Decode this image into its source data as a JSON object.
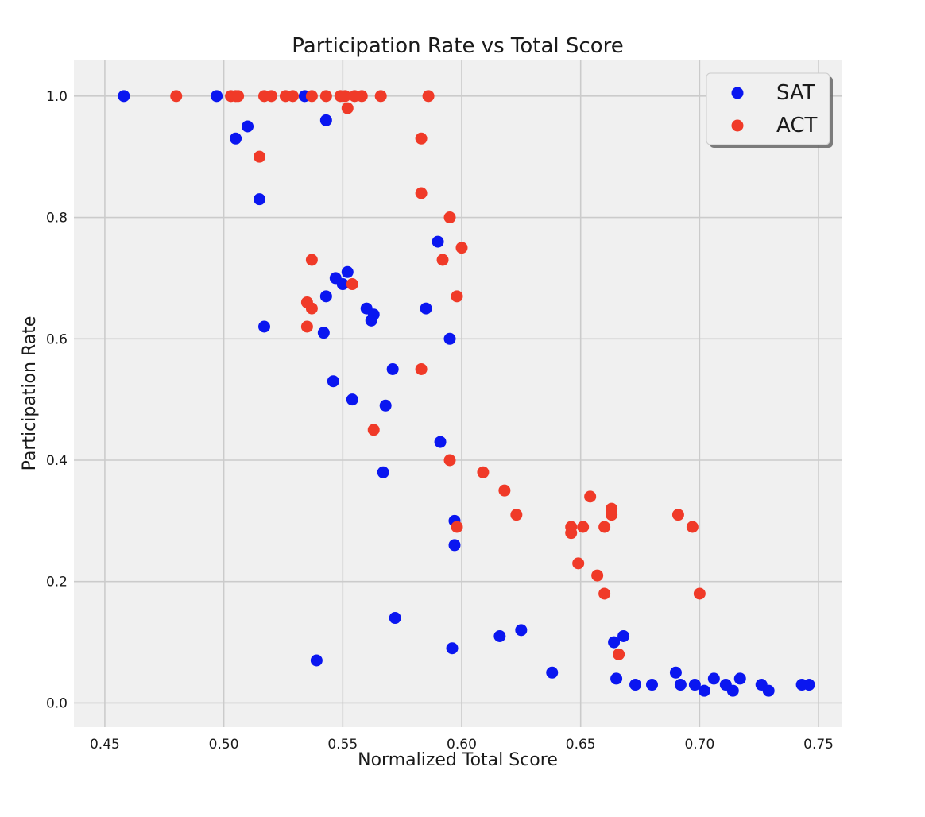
{
  "chart_data": {
    "type": "scatter",
    "title": "Participation Rate vs Total Score",
    "xlabel": "Normalized Total Score",
    "ylabel": "Participation Rate",
    "xlim": [
      0.437,
      0.76
    ],
    "ylim": [
      -0.04,
      1.06
    ],
    "xticks": [
      0.45,
      0.5,
      0.55,
      0.6,
      0.65,
      0.7,
      0.75
    ],
    "xtick_labels": [
      "0.45",
      "0.50",
      "0.55",
      "0.60",
      "0.65",
      "0.70",
      "0.75"
    ],
    "yticks": [
      0.0,
      0.2,
      0.4,
      0.6,
      0.8,
      1.0
    ],
    "ytick_labels": [
      "0.0",
      "0.2",
      "0.4",
      "0.6",
      "0.8",
      "1.0"
    ],
    "grid": true,
    "legend_position": "top-right",
    "background": "#f0f0f0",
    "series": [
      {
        "name": "SAT",
        "color": "#0a16f0",
        "points": [
          [
            0.458,
            1.0
          ],
          [
            0.497,
            1.0
          ],
          [
            0.534,
            1.0
          ],
          [
            0.543,
            0.96
          ],
          [
            0.51,
            0.95
          ],
          [
            0.505,
            0.93
          ],
          [
            0.515,
            0.83
          ],
          [
            0.59,
            0.76
          ],
          [
            0.552,
            0.71
          ],
          [
            0.547,
            0.7
          ],
          [
            0.55,
            0.69
          ],
          [
            0.543,
            0.67
          ],
          [
            0.56,
            0.65
          ],
          [
            0.585,
            0.65
          ],
          [
            0.563,
            0.64
          ],
          [
            0.562,
            0.63
          ],
          [
            0.517,
            0.62
          ],
          [
            0.542,
            0.61
          ],
          [
            0.595,
            0.6
          ],
          [
            0.571,
            0.55
          ],
          [
            0.546,
            0.53
          ],
          [
            0.554,
            0.5
          ],
          [
            0.568,
            0.49
          ],
          [
            0.591,
            0.43
          ],
          [
            0.567,
            0.38
          ],
          [
            0.597,
            0.3
          ],
          [
            0.597,
            0.26
          ],
          [
            0.572,
            0.14
          ],
          [
            0.625,
            0.12
          ],
          [
            0.616,
            0.11
          ],
          [
            0.668,
            0.11
          ],
          [
            0.664,
            0.1
          ],
          [
            0.596,
            0.09
          ],
          [
            0.539,
            0.07
          ],
          [
            0.638,
            0.05
          ],
          [
            0.69,
            0.05
          ],
          [
            0.665,
            0.04
          ],
          [
            0.706,
            0.04
          ],
          [
            0.717,
            0.04
          ],
          [
            0.673,
            0.03
          ],
          [
            0.68,
            0.03
          ],
          [
            0.692,
            0.03
          ],
          [
            0.698,
            0.03
          ],
          [
            0.711,
            0.03
          ],
          [
            0.726,
            0.03
          ],
          [
            0.743,
            0.03
          ],
          [
            0.746,
            0.03
          ],
          [
            0.702,
            0.02
          ],
          [
            0.714,
            0.02
          ],
          [
            0.729,
            0.02
          ]
        ]
      },
      {
        "name": "ACT",
        "color": "#f03a28",
        "points": [
          [
            0.48,
            1.0
          ],
          [
            0.503,
            1.0
          ],
          [
            0.505,
            1.0
          ],
          [
            0.506,
            1.0
          ],
          [
            0.517,
            1.0
          ],
          [
            0.52,
            1.0
          ],
          [
            0.526,
            1.0
          ],
          [
            0.529,
            1.0
          ],
          [
            0.537,
            1.0
          ],
          [
            0.543,
            1.0
          ],
          [
            0.549,
            1.0
          ],
          [
            0.551,
            1.0
          ],
          [
            0.555,
            1.0
          ],
          [
            0.558,
            1.0
          ],
          [
            0.566,
            1.0
          ],
          [
            0.586,
            1.0
          ],
          [
            0.552,
            0.98
          ],
          [
            0.583,
            0.93
          ],
          [
            0.515,
            0.9
          ],
          [
            0.583,
            0.84
          ],
          [
            0.595,
            0.8
          ],
          [
            0.6,
            0.75
          ],
          [
            0.537,
            0.73
          ],
          [
            0.592,
            0.73
          ],
          [
            0.554,
            0.69
          ],
          [
            0.598,
            0.67
          ],
          [
            0.535,
            0.66
          ],
          [
            0.537,
            0.65
          ],
          [
            0.535,
            0.62
          ],
          [
            0.583,
            0.55
          ],
          [
            0.563,
            0.45
          ],
          [
            0.595,
            0.4
          ],
          [
            0.609,
            0.38
          ],
          [
            0.618,
            0.35
          ],
          [
            0.654,
            0.34
          ],
          [
            0.663,
            0.32
          ],
          [
            0.623,
            0.31
          ],
          [
            0.663,
            0.31
          ],
          [
            0.691,
            0.31
          ],
          [
            0.598,
            0.29
          ],
          [
            0.646,
            0.29
          ],
          [
            0.651,
            0.29
          ],
          [
            0.66,
            0.29
          ],
          [
            0.697,
            0.29
          ],
          [
            0.646,
            0.28
          ],
          [
            0.649,
            0.23
          ],
          [
            0.657,
            0.21
          ],
          [
            0.66,
            0.18
          ],
          [
            0.7,
            0.18
          ],
          [
            0.666,
            0.08
          ]
        ]
      }
    ]
  }
}
